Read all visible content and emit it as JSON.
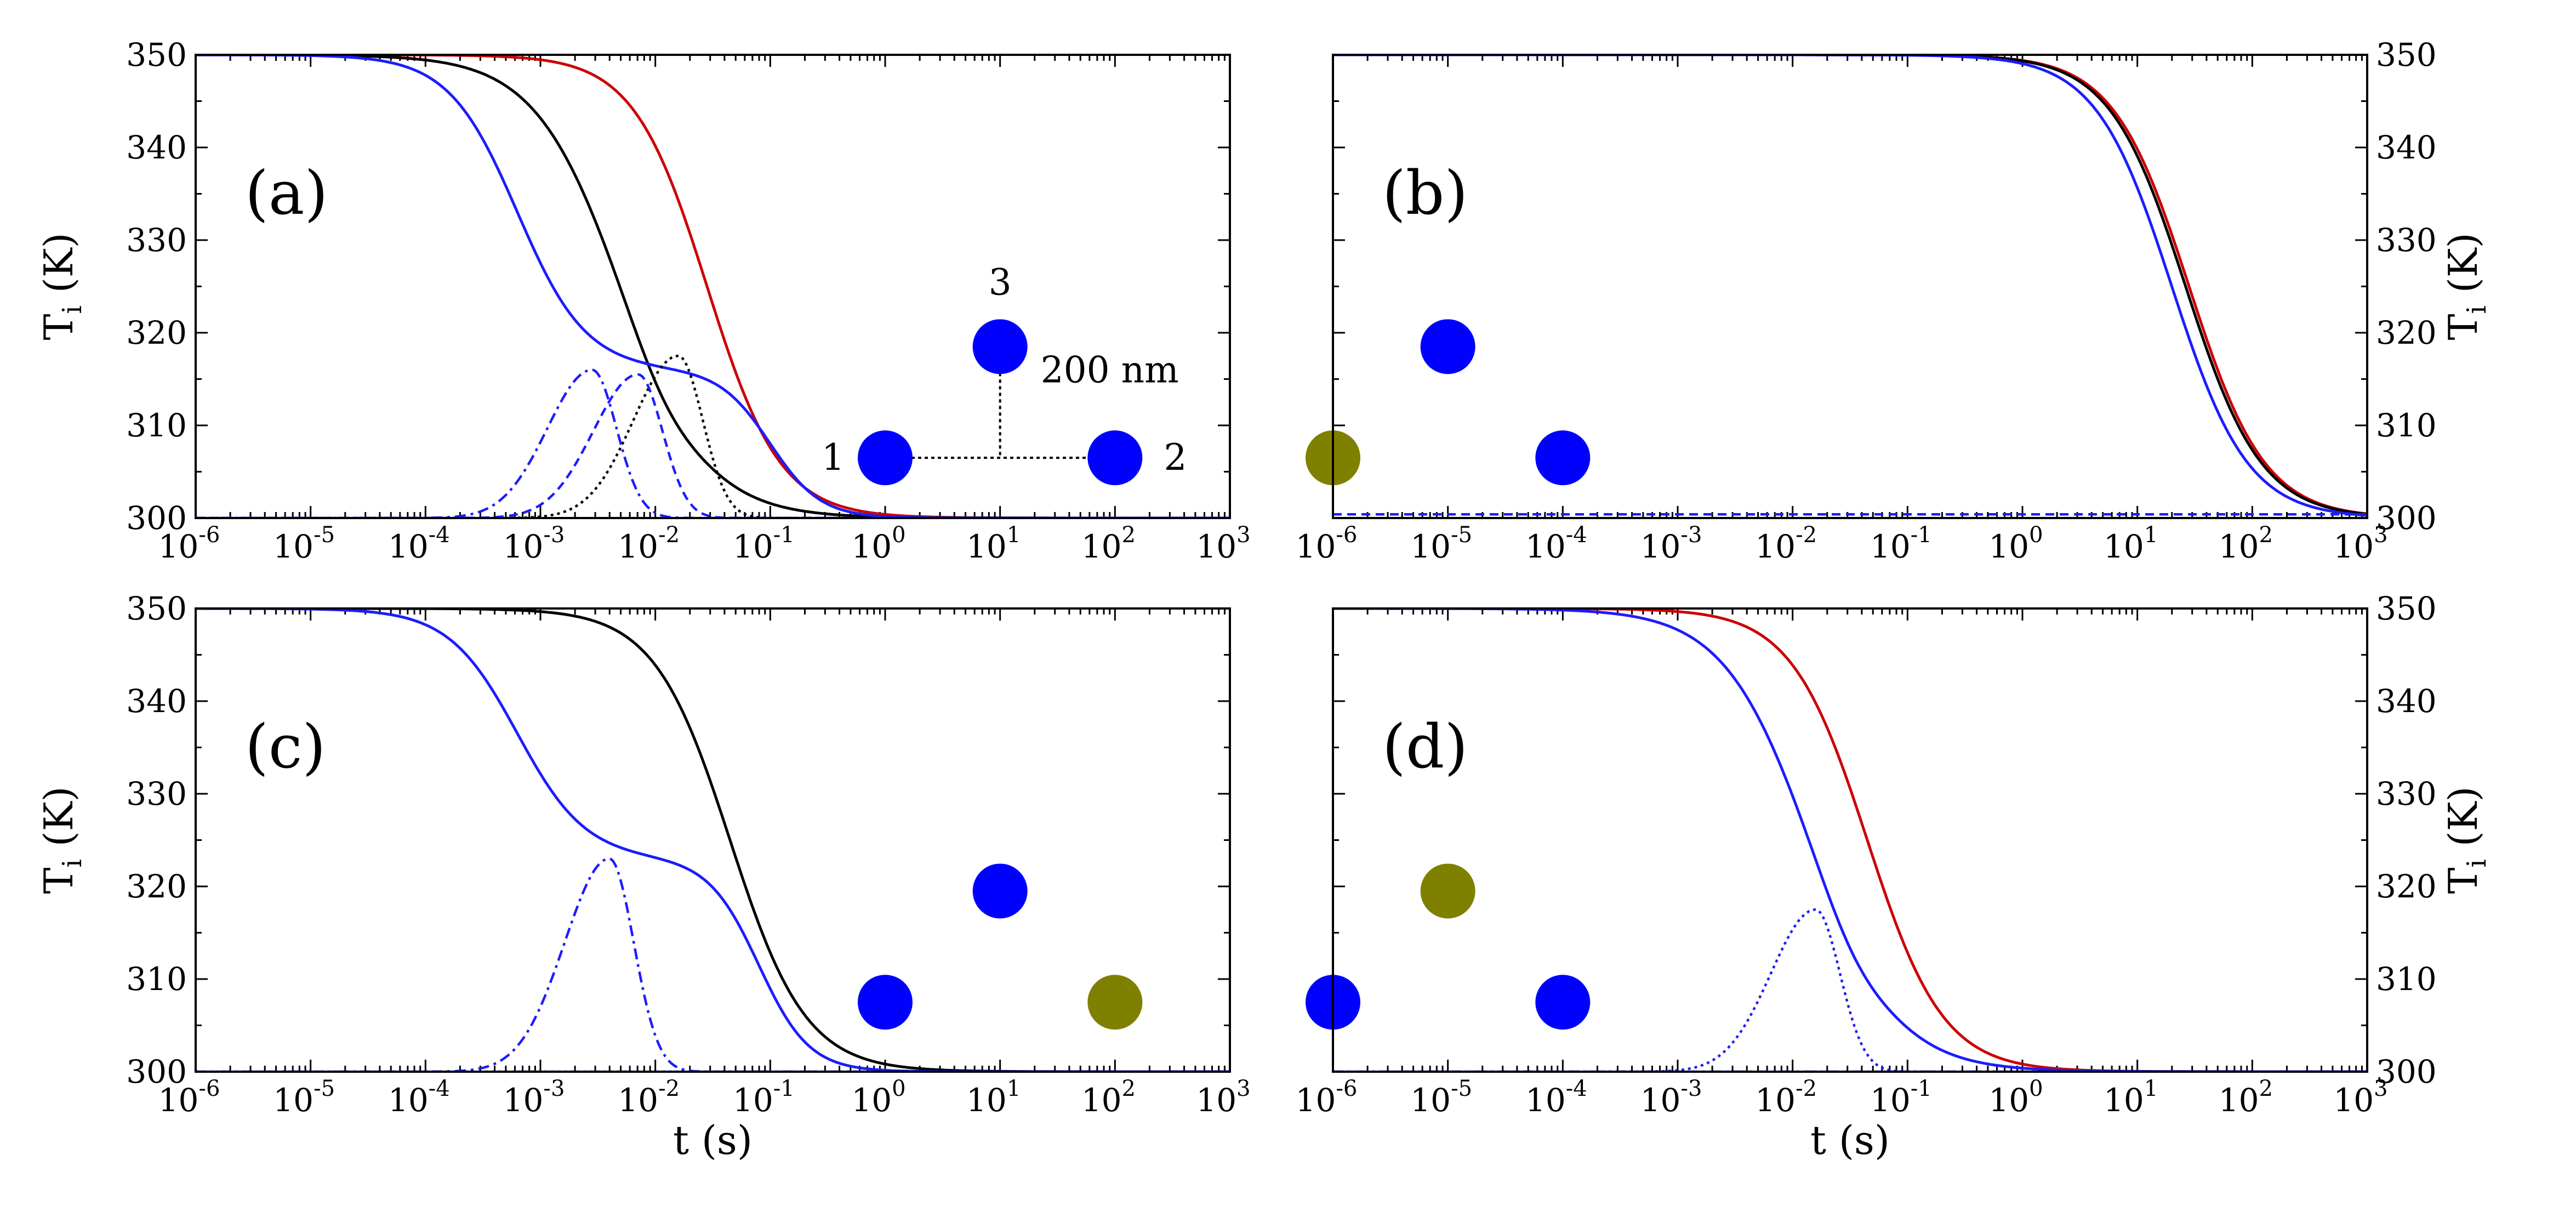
{
  "colors": {
    "red": "#cc0000",
    "black": "#000000",
    "blue": "#1c1cff",
    "particle_blue": "#0000ff",
    "particle_olive": "#808000"
  },
  "chart_data": [
    {
      "panel": "(a)",
      "type": "line",
      "xscale": "log",
      "xlim_exp": [
        -6,
        3
      ],
      "ylim": [
        300,
        350
      ],
      "xlabel": "",
      "ylabel_main": "T",
      "ylabel_sub": "i",
      "ylabel_unit": "(K)",
      "ylabel_side": "left",
      "yticks": [
        "300",
        "310",
        "320",
        "330",
        "340",
        "350"
      ],
      "series": [
        {
          "name": "red solid",
          "color": "red",
          "dash": "solid",
          "shape": "decay",
          "t_half_exp": -1.55,
          "width_dec": 0.32
        },
        {
          "name": "black solid",
          "color": "black",
          "dash": "solid",
          "shape": "decay_shoulder",
          "t_half_exp": -2.3,
          "width_dec": 0.38
        },
        {
          "name": "blue solid",
          "color": "blue",
          "dash": "solid",
          "shape": "two_step",
          "t1_exp": -3.2,
          "w1_dec": 0.3,
          "plateau": 316,
          "t2_exp": -1.0,
          "w2_dec": 0.22
        },
        {
          "name": "black dotted",
          "color": "black",
          "dash": "dotted",
          "shape": "bump",
          "peak_exp": -1.8,
          "peak": 317.5
        },
        {
          "name": "blue dashed",
          "color": "blue",
          "dash": "dashed",
          "shape": "bump",
          "peak_exp": -2.15,
          "peak": 315.5
        },
        {
          "name": "blue dash-dot",
          "color": "blue",
          "dash": "dashdot",
          "shape": "bump",
          "peak_exp": -2.55,
          "peak": 316
        }
      ],
      "annotations": {
        "p1": "1",
        "p2": "2",
        "p3": "3",
        "distance": "200 nm"
      },
      "particles": [
        {
          "id": 1,
          "color": "particle_blue",
          "x_exp": 0.0,
          "y": 306.5
        },
        {
          "id": 2,
          "color": "particle_blue",
          "x_exp": 2.0,
          "y": 306.5
        },
        {
          "id": 3,
          "color": "particle_blue",
          "x_exp": 1.0,
          "y": 318.5
        }
      ]
    },
    {
      "panel": "(b)",
      "type": "line",
      "xscale": "log",
      "xlim_exp": [
        -6,
        3
      ],
      "ylim": [
        300,
        350
      ],
      "xlabel": "",
      "ylabel_main": "T",
      "ylabel_sub": "i",
      "ylabel_unit": "(K)",
      "ylabel_side": "right",
      "yticks": [
        "300",
        "310",
        "320",
        "330",
        "340",
        "350"
      ],
      "series": [
        {
          "name": "red solid",
          "color": "red",
          "dash": "solid",
          "shape": "decay",
          "t_half_exp": 1.45,
          "width_dec": 0.33
        },
        {
          "name": "black solid",
          "color": "black",
          "dash": "solid",
          "shape": "decay",
          "t_half_exp": 1.42,
          "width_dec": 0.33
        },
        {
          "name": "blue solid",
          "color": "blue",
          "dash": "solid",
          "shape": "decay",
          "t_half_exp": 1.3,
          "width_dec": 0.33
        },
        {
          "name": "blue dashed",
          "color": "blue",
          "dash": "dashed",
          "shape": "flat",
          "level": 300.4
        }
      ],
      "particles": [
        {
          "id": 1,
          "color": "particle_olive",
          "x_exp": -6.0,
          "y": 306.5
        },
        {
          "id": 2,
          "color": "particle_blue",
          "x_exp": -4.0,
          "y": 306.5
        },
        {
          "id": 3,
          "color": "particle_blue",
          "x_exp": -5.0,
          "y": 318.5
        }
      ]
    },
    {
      "panel": "(c)",
      "type": "line",
      "xscale": "log",
      "xlim_exp": [
        -6,
        3
      ],
      "ylim": [
        300,
        350
      ],
      "xlabel": "t (s)",
      "ylabel_main": "T",
      "ylabel_sub": "i",
      "ylabel_unit": "(K)",
      "ylabel_side": "left",
      "yticks": [
        "300",
        "310",
        "320",
        "330",
        "340",
        "350"
      ],
      "series": [
        {
          "name": "black solid",
          "color": "black",
          "dash": "solid",
          "shape": "decay",
          "t_half_exp": -1.35,
          "width_dec": 0.33
        },
        {
          "name": "blue solid",
          "color": "blue",
          "dash": "solid",
          "shape": "two_step",
          "t1_exp": -3.2,
          "w1_dec": 0.3,
          "plateau": 323,
          "t2_exp": -1.1,
          "w2_dec": 0.22
        },
        {
          "name": "blue dash-dot",
          "color": "blue",
          "dash": "dashdot",
          "shape": "bump",
          "peak_exp": -2.4,
          "peak": 323
        },
        {
          "name": "blue dotted",
          "color": "blue",
          "dash": "dotted",
          "shape": "flat",
          "level": 300
        }
      ],
      "particles": [
        {
          "id": 1,
          "color": "particle_blue",
          "x_exp": 0.0,
          "y": 307.5
        },
        {
          "id": 2,
          "color": "particle_olive",
          "x_exp": 2.0,
          "y": 307.5
        },
        {
          "id": 3,
          "color": "particle_blue",
          "x_exp": 1.0,
          "y": 319.5
        }
      ]
    },
    {
      "panel": "(d)",
      "type": "line",
      "xscale": "log",
      "xlim_exp": [
        -6,
        3
      ],
      "ylim": [
        300,
        350
      ],
      "xlabel": "t (s)",
      "ylabel_main": "T",
      "ylabel_sub": "i",
      "ylabel_unit": "(K)",
      "ylabel_side": "right",
      "yticks": [
        "300",
        "310",
        "320",
        "330",
        "340",
        "350"
      ],
      "series": [
        {
          "name": "red solid",
          "color": "red",
          "dash": "solid",
          "shape": "decay",
          "t_half_exp": -1.35,
          "width_dec": 0.33
        },
        {
          "name": "blue solid",
          "color": "blue",
          "dash": "solid",
          "shape": "decay_shoulder",
          "t_half_exp": -1.85,
          "width_dec": 0.38
        },
        {
          "name": "blue dotted",
          "color": "blue",
          "dash": "dotted",
          "shape": "bump",
          "peak_exp": -1.8,
          "peak": 317.5
        },
        {
          "name": "blue dash-dot",
          "color": "blue",
          "dash": "dashdot",
          "shape": "flat",
          "level": 300
        }
      ],
      "particles": [
        {
          "id": 1,
          "color": "particle_blue",
          "x_exp": -6.0,
          "y": 307.5
        },
        {
          "id": 2,
          "color": "particle_blue",
          "x_exp": -4.0,
          "y": 307.5
        },
        {
          "id": 3,
          "color": "particle_olive",
          "x_exp": -5.0,
          "y": 319.5
        }
      ]
    }
  ]
}
